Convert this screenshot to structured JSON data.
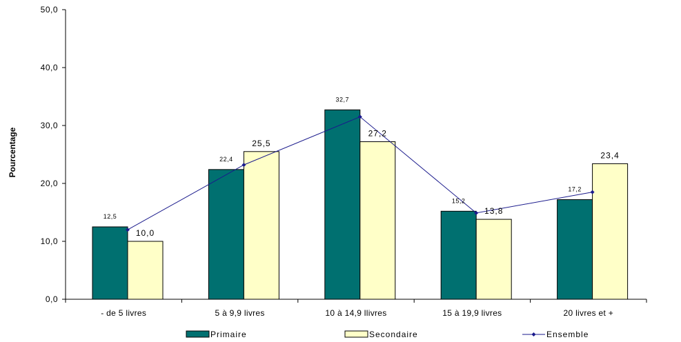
{
  "chart_data": {
    "type": "bar",
    "categories": [
      "- de 5 livres",
      "5 à 9,9 livres",
      "10 à 14,9 llivres",
      "15 à 19,9 livres",
      "20 livres et +"
    ],
    "series": [
      {
        "name": "Primaire",
        "type": "bar",
        "color": "#007070",
        "values": [
          12.5,
          22.4,
          32.7,
          15.2,
          17.2
        ],
        "labels": [
          "12,5",
          "22,4",
          "32,7",
          "15,2",
          "17,2"
        ]
      },
      {
        "name": "Secondaire",
        "type": "bar",
        "color": "#FFFFC8",
        "values": [
          10.0,
          25.5,
          27.2,
          13.8,
          23.4
        ],
        "labels": [
          "10,0",
          "25,5",
          "27,2",
          "13,8",
          "23,4"
        ]
      },
      {
        "name": "Ensemble",
        "type": "line",
        "color": "#1A1A8C",
        "values": [
          12.0,
          23.2,
          31.5,
          14.9,
          18.5
        ]
      }
    ],
    "title": "",
    "xlabel": "",
    "ylabel": "Pourcentage",
    "ylim": [
      0,
      50
    ],
    "yticks": [
      0,
      10,
      20,
      30,
      40,
      50
    ],
    "ytick_labels": [
      "0,0",
      "10,0",
      "20,0",
      "30,0",
      "40,0",
      "50,0"
    ],
    "grid": false,
    "legend_position": "bottom"
  }
}
